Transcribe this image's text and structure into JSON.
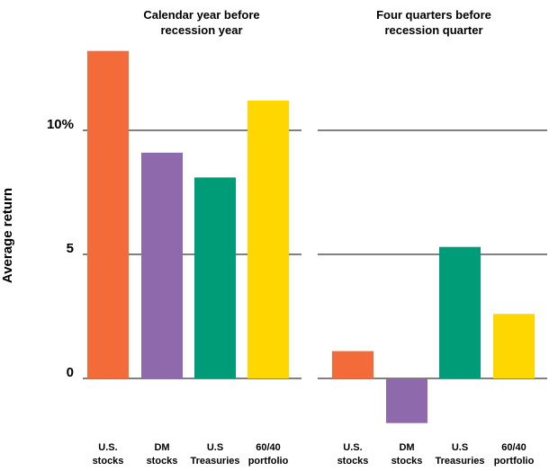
{
  "chart_data": {
    "type": "bar",
    "ylabel": "Average return",
    "ylim": [
      -1.8,
      13.2
    ],
    "yticks": [
      {
        "value": 0,
        "label": "0"
      },
      {
        "value": 5,
        "label": "5"
      },
      {
        "value": 10,
        "label": "10%"
      }
    ],
    "categories": [
      [
        "U.S.",
        "stocks"
      ],
      [
        "DM",
        "stocks"
      ],
      [
        "U.S",
        "Treasuries"
      ],
      [
        "60/40",
        "portfolio"
      ]
    ],
    "colors": [
      "#f26b38",
      "#8e6aad",
      "#009b77",
      "#ffd700"
    ],
    "panels": [
      {
        "title": [
          "Calendar year before",
          "recession year"
        ],
        "values": [
          13.2,
          9.1,
          8.1,
          11.2
        ]
      },
      {
        "title": [
          "Four quarters before",
          "recession quarter"
        ],
        "values": [
          1.1,
          -1.8,
          5.3,
          2.6
        ]
      }
    ]
  }
}
